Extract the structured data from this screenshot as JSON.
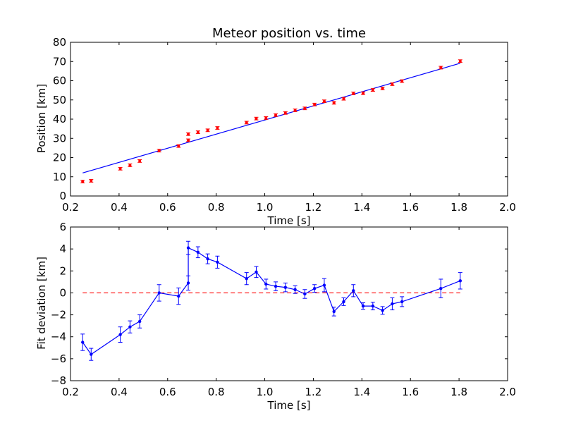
{
  "chart_data": [
    {
      "type": "scatter",
      "title": "Meteor position vs. time",
      "xlabel": "Time [s]",
      "ylabel": "Position [km]",
      "xlim": [
        0.2,
        2.0
      ],
      "ylim": [
        0,
        80
      ],
      "xticks": [
        "0.2",
        "0.4",
        "0.6",
        "0.8",
        "1.0",
        "1.2",
        "1.4",
        "1.6",
        "1.8",
        "2.0"
      ],
      "yticks": [
        "0",
        "10",
        "20",
        "30",
        "40",
        "50",
        "60",
        "70",
        "80"
      ],
      "colors": {
        "points": "#ff0000",
        "fit": "#0000ff"
      },
      "series": [
        {
          "kind": "points-with-error",
          "x": [
            0.25,
            0.285,
            0.405,
            0.445,
            0.485,
            0.565,
            0.645,
            0.685,
            0.685,
            0.725,
            0.765,
            0.805,
            0.925,
            0.965,
            1.005,
            1.045,
            1.085,
            1.125,
            1.165,
            1.205,
            1.245,
            1.285,
            1.325,
            1.365,
            1.405,
            1.445,
            1.485,
            1.525,
            1.565,
            1.725,
            1.805
          ],
          "y": [
            7.5,
            7.9,
            14.2,
            16.0,
            18.2,
            23.6,
            26.0,
            29.0,
            32.2,
            33.2,
            34.2,
            35.4,
            38.2,
            40.3,
            40.6,
            42.1,
            43.2,
            44.6,
            45.6,
            47.6,
            49.3,
            48.5,
            50.6,
            53.4,
            53.5,
            55.2,
            56.0,
            58.2,
            59.8,
            66.8,
            70.2
          ],
          "yerr": 0.7
        },
        {
          "kind": "fit-line",
          "x": [
            0.25,
            1.805
          ],
          "y": [
            12.0,
            69.1
          ]
        }
      ]
    },
    {
      "type": "line",
      "xlabel": "Time [s]",
      "ylabel": "Fit deviation [km]",
      "xlim": [
        0.2,
        2.0
      ],
      "ylim": [
        -8,
        6
      ],
      "xticks": [
        "0.2",
        "0.4",
        "0.6",
        "0.8",
        "1.0",
        "1.2",
        "1.4",
        "1.6",
        "1.8",
        "2.0"
      ],
      "yticks": [
        "6",
        "4",
        "2",
        "0",
        "−2",
        "−4",
        "−6",
        "−8"
      ],
      "colors": {
        "line": "#0000ff",
        "zero": "#ff0000"
      },
      "reference_line": {
        "y": 0,
        "x": [
          0.25,
          1.805
        ],
        "style": "dashed"
      },
      "series": [
        {
          "x": [
            0.25,
            0.285,
            0.405,
            0.445,
            0.485,
            0.565,
            0.645,
            0.685,
            0.685,
            0.725,
            0.765,
            0.805,
            0.925,
            0.965,
            1.005,
            1.045,
            1.085,
            1.125,
            1.165,
            1.205,
            1.245,
            1.285,
            1.325,
            1.365,
            1.405,
            1.445,
            1.485,
            1.525,
            1.565,
            1.725,
            1.805
          ],
          "y": [
            -4.5,
            -5.6,
            -3.8,
            -3.1,
            -2.6,
            0.0,
            -0.3,
            0.9,
            4.1,
            3.7,
            3.1,
            2.8,
            1.3,
            1.9,
            0.8,
            0.6,
            0.5,
            0.3,
            -0.1,
            0.4,
            0.7,
            -1.7,
            -0.8,
            0.2,
            -1.2,
            -1.2,
            -1.6,
            -1.0,
            -0.8,
            0.4,
            1.1
          ],
          "yerr": [
            0.75,
            0.55,
            0.7,
            0.55,
            0.6,
            0.75,
            0.75,
            0.65,
            0.6,
            0.5,
            0.45,
            0.55,
            0.55,
            0.5,
            0.45,
            0.4,
            0.4,
            0.35,
            0.4,
            0.35,
            0.6,
            0.4,
            0.35,
            0.55,
            0.3,
            0.35,
            0.35,
            0.55,
            0.45,
            0.85,
            0.75
          ]
        }
      ]
    }
  ]
}
